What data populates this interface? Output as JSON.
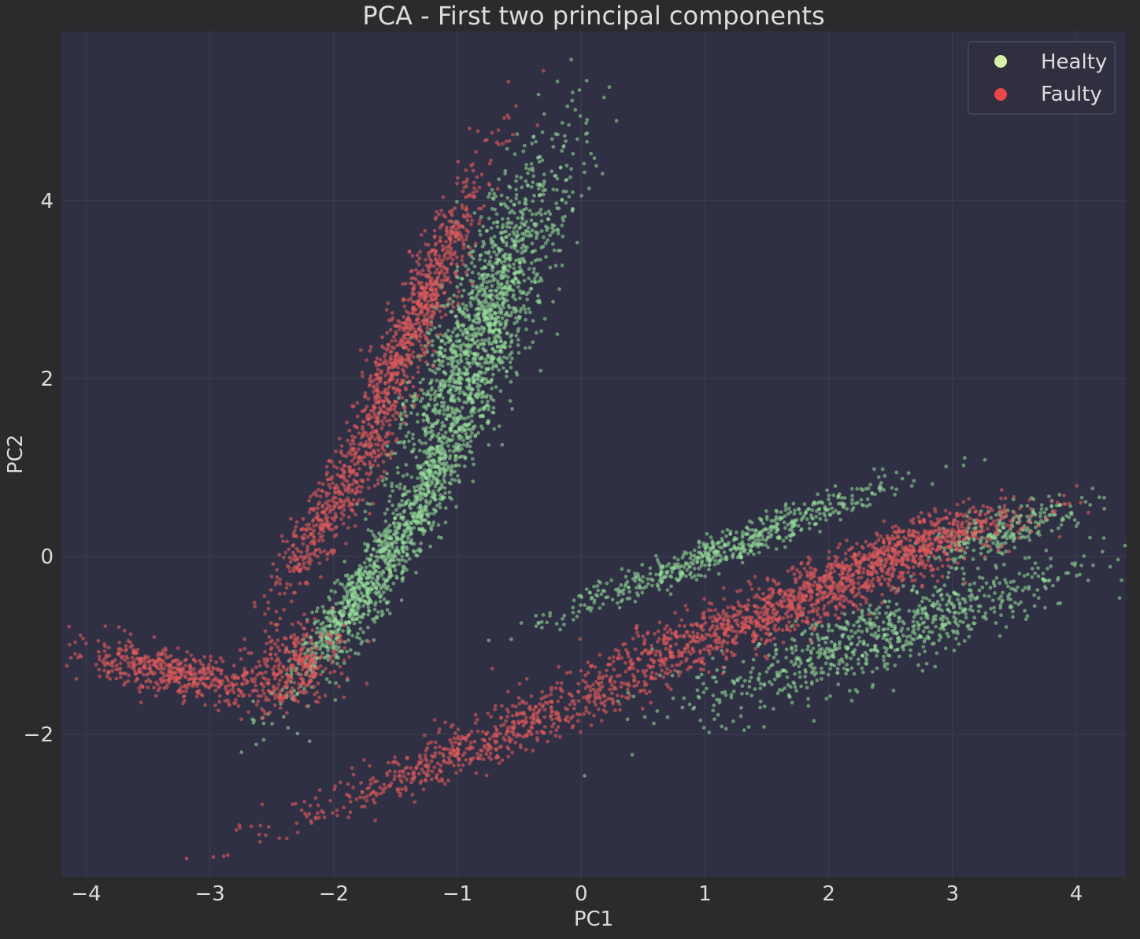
{
  "chart_data": {
    "type": "scatter",
    "title": "PCA - First two principal components",
    "xlabel": "PC1",
    "ylabel": "PC2",
    "xlim": [
      -4.2,
      4.4
    ],
    "ylim": [
      -3.6,
      5.9
    ],
    "xticks": [
      -4,
      -3,
      -2,
      -1,
      0,
      1,
      2,
      3,
      4
    ],
    "yticks": [
      -2,
      0,
      2,
      4
    ],
    "grid": true,
    "legend_position": "top-right",
    "series": [
      {
        "name": "Healty",
        "color": "#98e09a",
        "legend_color": "#d8f0a8",
        "clusters": [
          {
            "center": [
              -0.8,
              2.6
            ],
            "major_dir": [
              0.29,
              0.96
            ],
            "major_sd": 1.05,
            "minor_sd": 0.18,
            "n": 1500
          },
          {
            "center": [
              -1.3,
              0.6
            ],
            "major_dir": [
              0.35,
              0.94
            ],
            "major_sd": 0.9,
            "minor_sd": 0.1,
            "n": 700
          },
          {
            "center": [
              -1.9,
              -0.6
            ],
            "major_dir": [
              0.45,
              0.89
            ],
            "major_sd": 0.6,
            "minor_sd": 0.09,
            "n": 500
          },
          {
            "center": [
              1.2,
              0.1
            ],
            "major_dir": [
              0.88,
              0.48
            ],
            "major_sd": 0.75,
            "minor_sd": 0.09,
            "n": 600
          },
          {
            "center": [
              2.4,
              -0.9
            ],
            "major_dir": [
              0.89,
              0.46
            ],
            "major_sd": 0.85,
            "minor_sd": 0.2,
            "n": 800
          },
          {
            "center": [
              3.4,
              0.3
            ],
            "major_dir": [
              0.9,
              0.43
            ],
            "major_sd": 0.35,
            "minor_sd": 0.12,
            "n": 250
          }
        ]
      },
      {
        "name": "Faulty",
        "color": "#e05a5c",
        "legend_color": "#e84848",
        "clusters": [
          {
            "center": [
              -1.35,
              2.6
            ],
            "major_dir": [
              0.29,
              0.96
            ],
            "major_sd": 0.95,
            "minor_sd": 0.1,
            "n": 900
          },
          {
            "center": [
              -2.0,
              0.6
            ],
            "major_dir": [
              0.4,
              0.92
            ],
            "major_sd": 0.6,
            "minor_sd": 0.1,
            "n": 400
          },
          {
            "center": [
              -3.3,
              -1.3
            ],
            "major_dir": [
              0.96,
              -0.28
            ],
            "major_sd": 0.45,
            "minor_sd": 0.12,
            "n": 500
          },
          {
            "center": [
              -2.3,
              -1.2
            ],
            "major_dir": [
              0.4,
              0.92
            ],
            "major_sd": 0.25,
            "minor_sd": 0.18,
            "n": 300
          },
          {
            "center": [
              1.6,
              -0.6
            ],
            "major_dir": [
              0.89,
              0.46
            ],
            "major_sd": 1.0,
            "minor_sd": 0.15,
            "n": 1100
          },
          {
            "center": [
              -0.8,
              -2.1
            ],
            "major_dir": [
              0.87,
              0.49
            ],
            "major_sd": 0.9,
            "minor_sd": 0.12,
            "n": 600
          },
          {
            "center": [
              2.6,
              0.1
            ],
            "major_dir": [
              0.9,
              0.43
            ],
            "major_sd": 0.5,
            "minor_sd": 0.12,
            "n": 500
          }
        ]
      }
    ]
  }
}
